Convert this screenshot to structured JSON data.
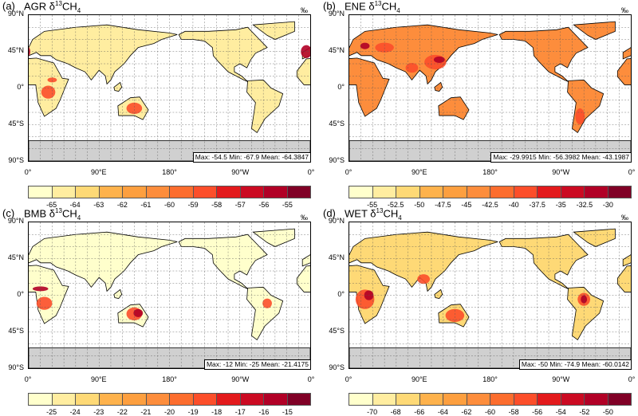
{
  "unit": "‰",
  "lat_ticks": [
    "90°N",
    "45°N",
    "0°",
    "45°S",
    "90°S"
  ],
  "lon_ticks": [
    "0°",
    "90°E",
    "180°",
    "90°W",
    "0°"
  ],
  "colors": [
    "#ffffcc",
    "#ffeda0",
    "#fed976",
    "#feb24c",
    "#fd9f3f",
    "#fd8d3c",
    "#fc6d2e",
    "#fc4e2a",
    "#e31a1c",
    "#cb0a22",
    "#b10026",
    "#800026"
  ],
  "panels": [
    {
      "label": "(a)",
      "name": "AGR",
      "iso": "δ",
      "sup": "13",
      "species": "CH",
      "sub": "4",
      "stats": "Max: -54.5  Min: -67.9  Mean: -64.3847",
      "levels": [
        "-65",
        "-64",
        "-63",
        "-62",
        "-61",
        "-60",
        "-59",
        "-58",
        "-57",
        "-56",
        "-55"
      ],
      "land": 1
    },
    {
      "label": "(b)",
      "name": "ENE",
      "iso": "δ",
      "sup": "13",
      "species": "CH",
      "sub": "4",
      "stats": "Max: -29.9915  Min: -56.3982  Mean: -43.1987",
      "levels": [
        "-55",
        "-52.5",
        "-50",
        "-47.5",
        "-45",
        "-42.5",
        "-40",
        "-37.5",
        "-35",
        "-32.5",
        "-30"
      ],
      "land": 5
    },
    {
      "label": "(c)",
      "name": "BMB",
      "iso": "δ",
      "sup": "13",
      "species": "CH",
      "sub": "4",
      "stats": "Max: -12  Min: -25  Mean: -21.4175",
      "levels": [
        "-25",
        "-24",
        "-23",
        "-22",
        "-21",
        "-20",
        "-19",
        "-18",
        "-17",
        "-16",
        "-15"
      ],
      "land": 0
    },
    {
      "label": "(d)",
      "name": "WET",
      "iso": "δ",
      "sup": "13",
      "species": "CH",
      "sub": "4",
      "stats": "Max: -50  Min: -74.9  Mean: -60.0142",
      "levels": [
        "-70",
        "-68",
        "-66",
        "-64",
        "-62",
        "-60",
        "-58",
        "-56",
        "-54",
        "-52",
        "-50"
      ],
      "land": 2
    }
  ]
}
